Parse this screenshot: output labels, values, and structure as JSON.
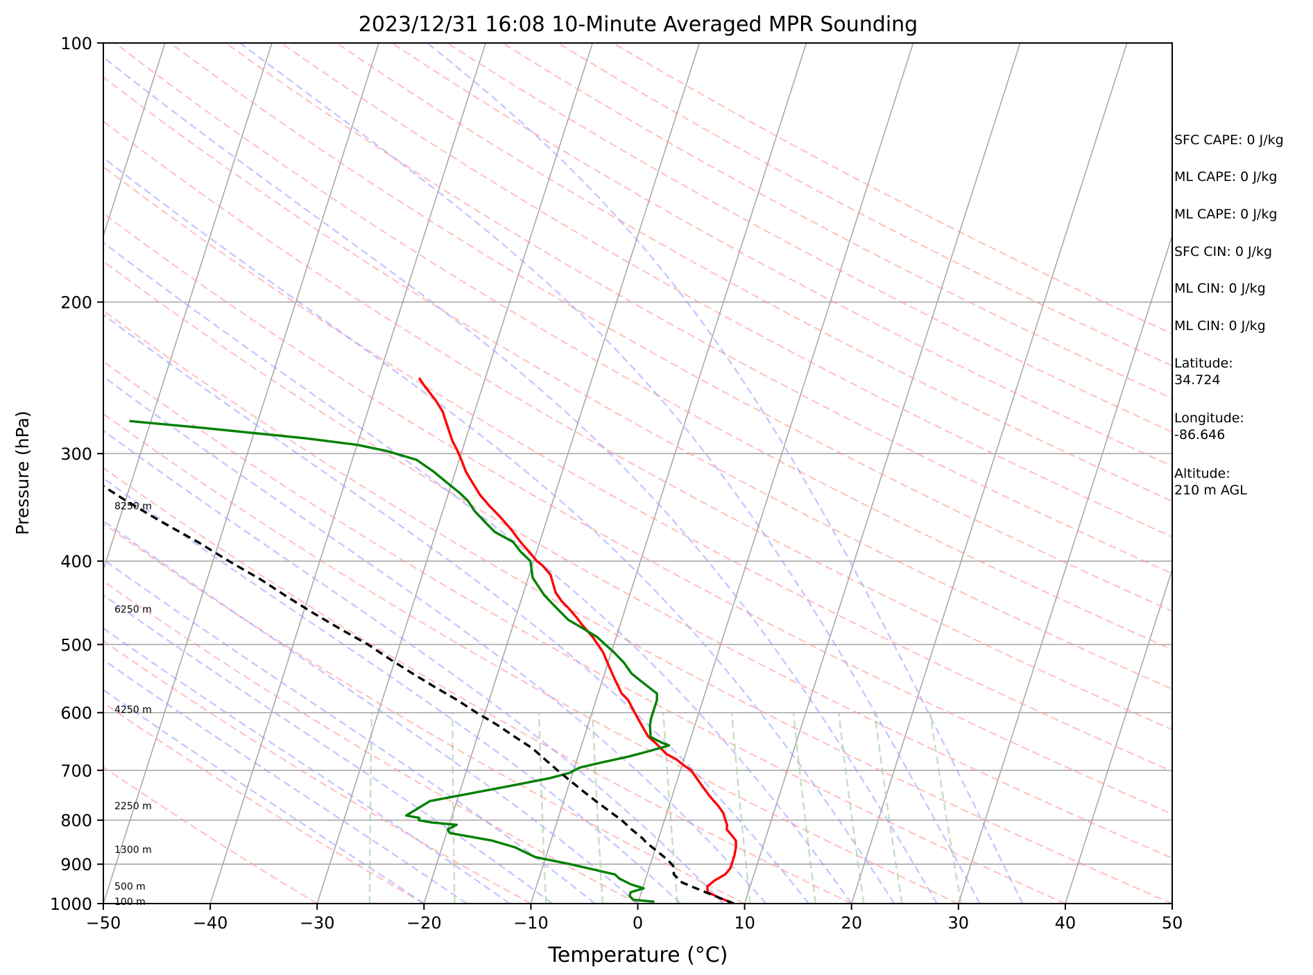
{
  "chart_data": {
    "type": "line",
    "subtype": "skew-T log-P",
    "title": "2023/12/31 16:08 10-Minute Averaged MPR Sounding",
    "xlabel": "Temperature (°C)",
    "ylabel": "Pressure (hPa)",
    "xlim": [
      -50,
      50
    ],
    "ylim": [
      1000,
      100
    ],
    "y_scale": "log",
    "x_ticks": [
      "−50",
      "−40",
      "−30",
      "−20",
      "−10",
      "0",
      "10",
      "20",
      "30",
      "40",
      "50"
    ],
    "x_tick_values": [
      -50,
      -40,
      -30,
      -20,
      -10,
      0,
      10,
      20,
      30,
      40,
      50
    ],
    "y_ticks": [
      "100",
      "200",
      "300",
      "400",
      "500",
      "600",
      "700",
      "800",
      "900",
      "1000"
    ],
    "y_tick_values": [
      100,
      200,
      300,
      400,
      500,
      600,
      700,
      800,
      900,
      1000
    ],
    "grid": true,
    "colors": {
      "temperature": "#ff0000",
      "dewpoint": "#008000",
      "parcel": "#000000",
      "isotherm": "#a9a9a9",
      "dry_adiabat": "#ff9999",
      "moist_adiabat": "#9999ff",
      "mixing_ratio": "#99cc99"
    },
    "series": [
      {
        "key": "temperature",
        "points": [
          [
            9.0,
            1000
          ],
          [
            7.5,
            985
          ],
          [
            6.2,
            970
          ],
          [
            6.0,
            955
          ],
          [
            6.5,
            940
          ],
          [
            7.3,
            925
          ],
          [
            7.6,
            910
          ],
          [
            7.6,
            880
          ],
          [
            7.5,
            860
          ],
          [
            7.3,
            845
          ],
          [
            6.6,
            830
          ],
          [
            6.1,
            820
          ],
          [
            6.0,
            810
          ],
          [
            5.7,
            800
          ],
          [
            5.3,
            785
          ],
          [
            4.6,
            770
          ],
          [
            3.5,
            750
          ],
          [
            2.5,
            730
          ],
          [
            1.5,
            710
          ],
          [
            1.0,
            700
          ],
          [
            0.1,
            690
          ],
          [
            -0.7,
            680
          ],
          [
            -1.8,
            670
          ],
          [
            -2.5,
            660
          ],
          [
            -3.2,
            650
          ],
          [
            -4.0,
            640
          ],
          [
            -4.5,
            630
          ],
          [
            -5.0,
            620
          ],
          [
            -5.5,
            610
          ],
          [
            -6.0,
            600
          ],
          [
            -6.5,
            590
          ],
          [
            -7.0,
            580
          ],
          [
            -7.8,
            570
          ],
          [
            -8.8,
            550
          ],
          [
            -9.8,
            530
          ],
          [
            -10.8,
            510
          ],
          [
            -11.5,
            500
          ],
          [
            -12.2,
            490
          ],
          [
            -13.5,
            475
          ],
          [
            -14.3,
            465
          ],
          [
            -15.2,
            455
          ],
          [
            -16.2,
            445
          ],
          [
            -17.0,
            435
          ],
          [
            -17.5,
            425
          ],
          [
            -18.0,
            415
          ],
          [
            -19.0,
            405
          ],
          [
            -19.7,
            400
          ],
          [
            -20.5,
            392
          ],
          [
            -21.8,
            380
          ],
          [
            -23.0,
            368
          ],
          [
            -24.5,
            355
          ],
          [
            -25.8,
            345
          ],
          [
            -27.0,
            335
          ],
          [
            -28.0,
            325
          ],
          [
            -29.0,
            315
          ],
          [
            -29.8,
            305
          ],
          [
            -30.5,
            297
          ],
          [
            -31.2,
            290
          ],
          [
            -32.0,
            280
          ],
          [
            -33.0,
            268
          ],
          [
            -34.0,
            260
          ],
          [
            -35.5,
            250
          ],
          [
            -36.2,
            245
          ]
        ]
      },
      {
        "key": "dewpoint",
        "points": [
          [
            1.5,
            995
          ],
          [
            -0.5,
            990
          ],
          [
            -1.0,
            980
          ],
          [
            -1.0,
            970
          ],
          [
            0.1,
            960
          ],
          [
            -1.2,
            950
          ],
          [
            -2.5,
            935
          ],
          [
            -3.0,
            925
          ],
          [
            -7.5,
            900
          ],
          [
            -11.0,
            883
          ],
          [
            -13.2,
            860
          ],
          [
            -15.5,
            845
          ],
          [
            -19.7,
            828
          ],
          [
            -20.0,
            820
          ],
          [
            -19.3,
            810
          ],
          [
            -21.7,
            805
          ],
          [
            -23.0,
            800
          ],
          [
            -23.0,
            795
          ],
          [
            -24.3,
            790
          ],
          [
            -22.5,
            760
          ],
          [
            -19.0,
            745
          ],
          [
            -15.5,
            730
          ],
          [
            -12.0,
            715
          ],
          [
            -10.3,
            705
          ],
          [
            -9.5,
            695
          ],
          [
            -7.5,
            685
          ],
          [
            -5.3,
            675
          ],
          [
            -3.5,
            665
          ],
          [
            -1.8,
            655
          ],
          [
            -2.6,
            650
          ],
          [
            -3.2,
            645
          ],
          [
            -3.8,
            640
          ],
          [
            -4.0,
            630
          ],
          [
            -4.2,
            620
          ],
          [
            -4.3,
            610
          ],
          [
            -4.3,
            600
          ],
          [
            -4.3,
            590
          ],
          [
            -4.3,
            580
          ],
          [
            -4.5,
            570
          ],
          [
            -5.0,
            565
          ],
          [
            -6.5,
            550
          ],
          [
            -7.5,
            540
          ],
          [
            -8.5,
            525
          ],
          [
            -9.8,
            510
          ],
          [
            -10.8,
            500
          ],
          [
            -11.8,
            490
          ],
          [
            -13.5,
            478
          ],
          [
            -15.0,
            468
          ],
          [
            -16.0,
            458
          ],
          [
            -17.0,
            448
          ],
          [
            -18.0,
            438
          ],
          [
            -18.8,
            428
          ],
          [
            -19.6,
            418
          ],
          [
            -20.3,
            400
          ],
          [
            -21.5,
            390
          ],
          [
            -22.5,
            380
          ],
          [
            -24.5,
            370
          ],
          [
            -25.5,
            362
          ],
          [
            -27.0,
            350
          ],
          [
            -28.0,
            340
          ],
          [
            -29.0,
            333
          ],
          [
            -30.5,
            324
          ],
          [
            -32.0,
            315
          ],
          [
            -34.0,
            305
          ],
          [
            -37.0,
            298
          ],
          [
            -40.0,
            293
          ],
          [
            -45.0,
            288
          ],
          [
            -55.0,
            280
          ],
          [
            -62.0,
            275
          ]
        ]
      },
      {
        "key": "parcel",
        "points": [
          [
            9.0,
            1000
          ],
          [
            7.5,
            985
          ],
          [
            6.0,
            970
          ],
          [
            4.5,
            955
          ],
          [
            3.5,
            945
          ],
          [
            2.5,
            925
          ],
          [
            2.2,
            905
          ],
          [
            2.0,
            900
          ],
          [
            1.5,
            890
          ],
          [
            0.3,
            870
          ],
          [
            -1.0,
            850
          ],
          [
            -1.5,
            840
          ],
          [
            -2.8,
            820
          ],
          [
            -4.0,
            800
          ],
          [
            -5.5,
            780
          ],
          [
            -7.0,
            760
          ],
          [
            -8.5,
            740
          ],
          [
            -10.0,
            720
          ],
          [
            -11.5,
            700
          ],
          [
            -13.0,
            680
          ],
          [
            -14.5,
            660
          ],
          [
            -16.5,
            640
          ],
          [
            -18.5,
            620
          ],
          [
            -20.8,
            600
          ],
          [
            -23.0,
            580
          ],
          [
            -25.5,
            560
          ],
          [
            -28.0,
            540
          ],
          [
            -30.5,
            520
          ],
          [
            -33.0,
            500
          ],
          [
            -36.0,
            480
          ],
          [
            -39.0,
            460
          ],
          [
            -42.0,
            440
          ],
          [
            -45.0,
            420
          ],
          [
            -48.5,
            400
          ],
          [
            -52.0,
            380
          ],
          [
            -56.0,
            360
          ],
          [
            -60.0,
            340
          ],
          [
            -64.0,
            320
          ],
          [
            -68.5,
            300
          ],
          [
            -73.5,
            280
          ],
          [
            -78.5,
            260
          ]
        ]
      }
    ],
    "height_labels": [
      {
        "text": "8250 m",
        "pressure": 345
      },
      {
        "text": "6250 m",
        "pressure": 455
      },
      {
        "text": "4250 m",
        "pressure": 595
      },
      {
        "text": "2250 m",
        "pressure": 770
      },
      {
        "text": "1300 m",
        "pressure": 865
      },
      {
        "text": "500 m",
        "pressure": 955
      },
      {
        "text": "100 m",
        "pressure": 994
      }
    ]
  },
  "info_panel": [
    "SFC CAPE: 0 J/kg",
    "ML CAPE: 0 J/kg",
    "ML CAPE: 0 J/kg",
    "SFC CIN: 0 J/kg",
    "ML CIN: 0 J/kg",
    "ML CIN: 0 J/kg",
    "Latitude:\n34.724",
    "Longitude:\n-86.646",
    "Altitude:\n210 m AGL"
  ]
}
